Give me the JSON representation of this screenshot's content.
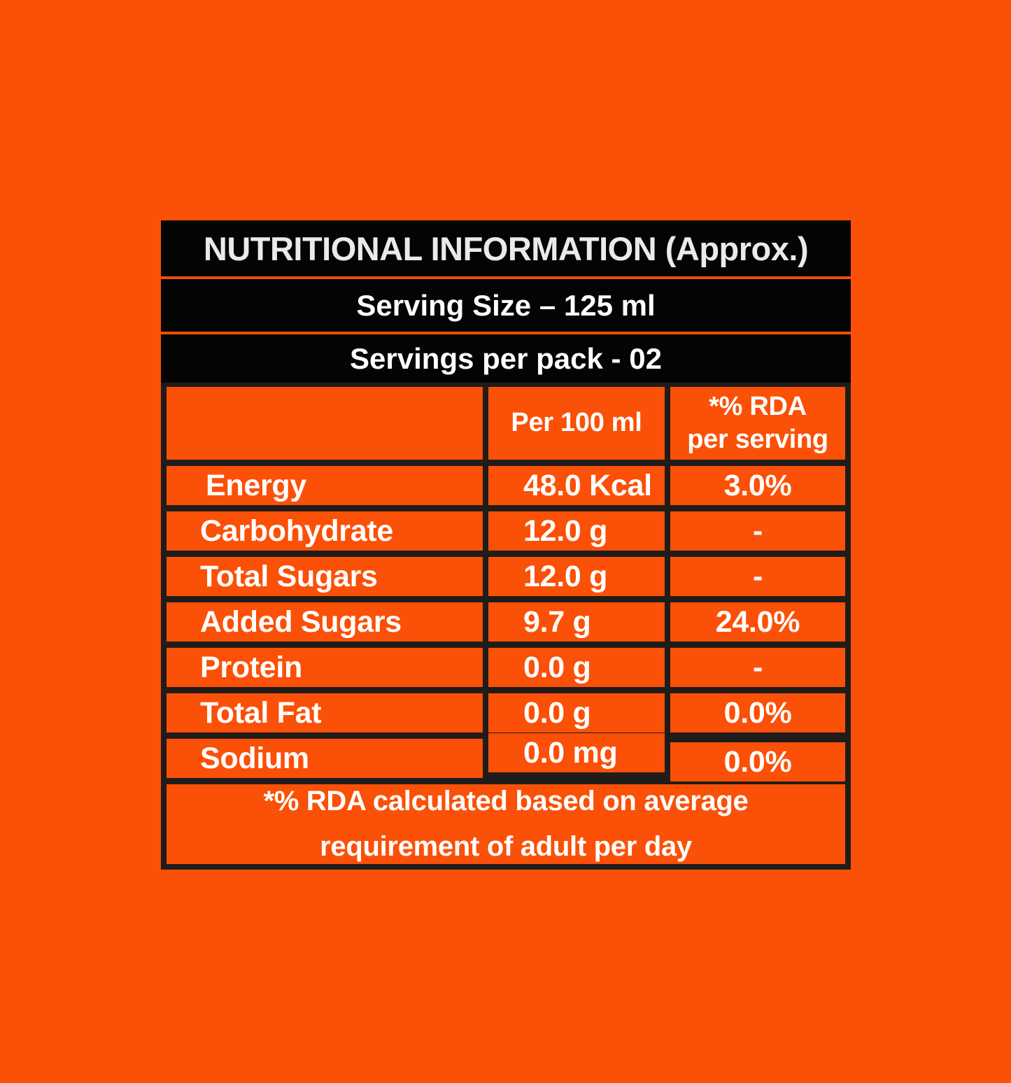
{
  "colors": {
    "background_orange": "#FB5007",
    "table_black": "#050404",
    "grid_line_black": "#201C1A",
    "divider_orange": "#EE4C0A",
    "text_white": "#FFFFFF"
  },
  "header": {
    "title": "NUTRITIONAL INFORMATION (Approx.)",
    "serving_size": "Serving Size – 125 ml",
    "servings_per_pack": "Servings per pack - 02"
  },
  "table": {
    "columns": [
      "",
      "Per 100 ml",
      "*% RDA\nper serving"
    ],
    "rows": [
      {
        "label": "Energy",
        "per_100ml": "48.0 Kcal",
        "rda": "3.0%"
      },
      {
        "label": "Carbohydrate",
        "per_100ml": "12.0 g",
        "rda": "-"
      },
      {
        "label": "Total Sugars",
        "per_100ml": "12.0 g",
        "rda": "-"
      },
      {
        "label": "Added Sugars",
        "per_100ml": "9.7 g",
        "rda": "24.0%"
      },
      {
        "label": "Protein",
        "per_100ml": "0.0 g",
        "rda": "-"
      },
      {
        "label": "Total Fat",
        "per_100ml": "0.0 g",
        "rda": "0.0%"
      },
      {
        "label": "Sodium",
        "per_100ml": "0.0 mg",
        "rda": "0.0%"
      }
    ],
    "footnote": "*% RDA calculated based on average\nrequirement of adult per day"
  }
}
